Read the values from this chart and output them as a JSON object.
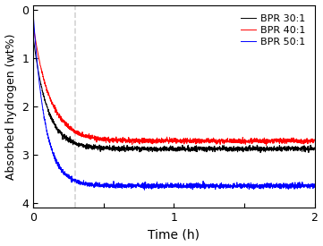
{
  "title": "",
  "xlabel": "Time (h)",
  "ylabel": "Absorbed hydrogen (wt%)",
  "xlim": [
    0,
    2
  ],
  "ylim": [
    4.1,
    -0.1
  ],
  "yticks": [
    0,
    1,
    2,
    3,
    4
  ],
  "xticks": [
    0,
    0.5,
    1.0,
    1.5,
    2.0
  ],
  "xtick_labels": [
    "0",
    "",
    "1",
    "",
    "2"
  ],
  "dashed_x": 0.3,
  "legend_labels": [
    "BPR 30:1",
    "BPR 40:1",
    "BPR 50:1"
  ],
  "line_colors": [
    "#000000",
    "#ff0000",
    "#0000ff"
  ],
  "seed": 42,
  "noise_std": 0.04,
  "n_points": 2000,
  "bpr30_start": 0.55,
  "bpr30_plateau": 2.88,
  "bpr30_tau": 0.1,
  "bpr40_start": 0.3,
  "bpr40_plateau": 2.72,
  "bpr40_tau": 0.12,
  "bpr50_start": 0.05,
  "bpr50_plateau": 3.65,
  "bpr50_tau": 0.085,
  "background_color": "#ffffff"
}
